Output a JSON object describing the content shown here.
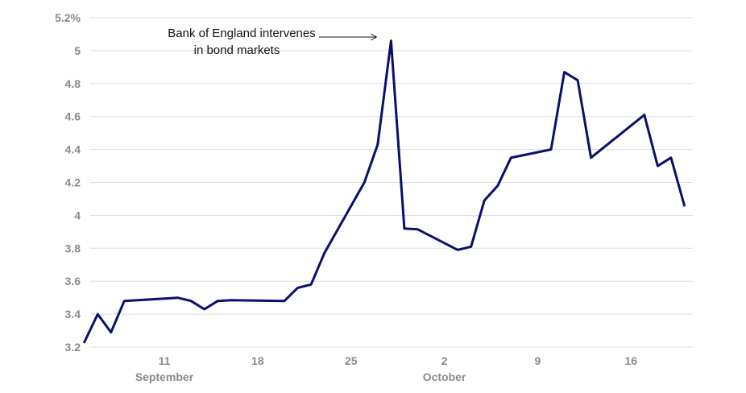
{
  "chart_data": {
    "type": "line",
    "title": "",
    "xlabel": "",
    "ylabel": "",
    "ylim": [
      3.2,
      5.2
    ],
    "y_ticks": [
      "3.2",
      "3.4",
      "3.6",
      "3.8",
      "4",
      "4.2",
      "4.4",
      "4.6",
      "4.8",
      "5",
      "5.2%"
    ],
    "y_tick_values": [
      3.2,
      3.4,
      3.6,
      3.8,
      4.0,
      4.2,
      4.4,
      4.6,
      4.8,
      5.0,
      5.2
    ],
    "x_ticks": [
      {
        "label": "11",
        "date": "2022-09-11"
      },
      {
        "label": "18",
        "date": "2022-09-18"
      },
      {
        "label": "25",
        "date": "2022-09-25"
      },
      {
        "label": "2",
        "date": "2022-10-02"
      },
      {
        "label": "9",
        "date": "2022-10-09"
      },
      {
        "label": "16",
        "date": "2022-10-16"
      }
    ],
    "month_labels": [
      {
        "label": "September",
        "date": "2022-09-11"
      },
      {
        "label": "October",
        "date": "2022-10-02"
      }
    ],
    "grid": true,
    "line_color": "#0b0f6b",
    "series": [
      {
        "name": "",
        "points": [
          {
            "date": "2022-09-05",
            "value": 3.23
          },
          {
            "date": "2022-09-06",
            "value": 3.4
          },
          {
            "date": "2022-09-07",
            "value": 3.29
          },
          {
            "date": "2022-09-08",
            "value": 3.48
          },
          {
            "date": "2022-09-12",
            "value": 3.5
          },
          {
            "date": "2022-09-13",
            "value": 3.48
          },
          {
            "date": "2022-09-14",
            "value": 3.43
          },
          {
            "date": "2022-09-15",
            "value": 3.48
          },
          {
            "date": "2022-09-16",
            "value": 3.485
          },
          {
            "date": "2022-09-20",
            "value": 3.48
          },
          {
            "date": "2022-09-21",
            "value": 3.56
          },
          {
            "date": "2022-09-22",
            "value": 3.58
          },
          {
            "date": "2022-09-23",
            "value": 3.77
          },
          {
            "date": "2022-09-26",
            "value": 4.2
          },
          {
            "date": "2022-09-27",
            "value": 4.43
          },
          {
            "date": "2022-09-28",
            "value": 5.06
          },
          {
            "date": "2022-09-29",
            "value": 3.92
          },
          {
            "date": "2022-09-30",
            "value": 3.915
          },
          {
            "date": "2022-10-03",
            "value": 3.79
          },
          {
            "date": "2022-10-04",
            "value": 3.81
          },
          {
            "date": "2022-10-05",
            "value": 4.09
          },
          {
            "date": "2022-10-06",
            "value": 4.18
          },
          {
            "date": "2022-10-07",
            "value": 4.35
          },
          {
            "date": "2022-10-10",
            "value": 4.4
          },
          {
            "date": "2022-10-11",
            "value": 4.87
          },
          {
            "date": "2022-10-12",
            "value": 4.82
          },
          {
            "date": "2022-10-13",
            "value": 4.35
          },
          {
            "date": "2022-10-17",
            "value": 4.61
          },
          {
            "date": "2022-10-18",
            "value": 4.3
          },
          {
            "date": "2022-10-19",
            "value": 4.35
          },
          {
            "date": "2022-10-20",
            "value": 4.06
          }
        ]
      }
    ],
    "annotations": [
      {
        "line1": "Bank of England intervenes",
        "line2": "in bond markets",
        "target_date": "2022-09-28",
        "target_value": 5.06
      }
    ]
  }
}
